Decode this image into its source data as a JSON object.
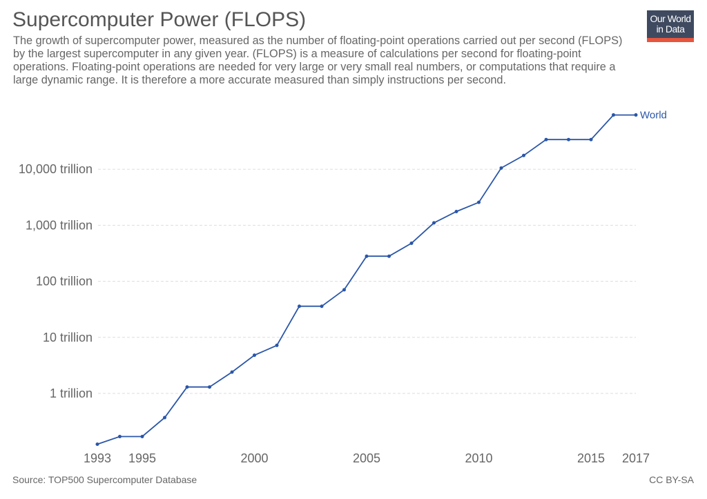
{
  "header": {
    "title": "Supercomputer Power (FLOPS)",
    "subtitle": "The growth of supercomputer power, measured as the number of floating-point operations carried out per second (FLOPS) by the largest supercomputer in any given year. (FLOPS) is a measure of calculations per second for floating-point operations. Floating-point operations are needed for very large or very small real numbers, or computations that require a large dynamic range. It is therefore a more accurate measured than simply instructions per second.",
    "logo_line1": "Our World",
    "logo_line2": "in Data"
  },
  "footer": {
    "source": "Source: TOP500 Supercomputer Database",
    "license": "CC BY-SA"
  },
  "colors": {
    "series": "#2a56a8",
    "logo_bg": "#3f4a60",
    "logo_bar": "#e6553d"
  },
  "chart_data": {
    "type": "line",
    "title": "Supercomputer Power (FLOPS)",
    "xlabel": "",
    "ylabel": "",
    "yscale": "log",
    "units": "trillion FLOPS",
    "xlim": [
      1993,
      2017
    ],
    "ylim": [
      0.1,
      150000
    ],
    "grid": true,
    "x_ticks": [
      1993,
      1995,
      2000,
      2005,
      2010,
      2015,
      2017
    ],
    "y_ticks": [
      {
        "value": 1,
        "label": "1 trillion"
      },
      {
        "value": 10,
        "label": "10 trillion"
      },
      {
        "value": 100,
        "label": "100 trillion"
      },
      {
        "value": 1000,
        "label": "1,000 trillion"
      },
      {
        "value": 10000,
        "label": "10,000 trillion"
      }
    ],
    "series": [
      {
        "name": "World",
        "x": [
          1993,
          1994,
          1995,
          1996,
          1997,
          1998,
          1999,
          2000,
          2001,
          2002,
          2003,
          2004,
          2005,
          2006,
          2007,
          2008,
          2009,
          2010,
          2011,
          2012,
          2013,
          2014,
          2015,
          2016,
          2017
        ],
        "values": [
          0.124,
          0.17,
          0.17,
          0.37,
          1.3,
          1.3,
          2.4,
          4.8,
          7.2,
          35.9,
          35.9,
          70.7,
          280.6,
          280.6,
          478,
          1105,
          1759,
          2566,
          10510,
          17590,
          33860,
          33860,
          33860,
          93010,
          93010
        ]
      }
    ]
  }
}
